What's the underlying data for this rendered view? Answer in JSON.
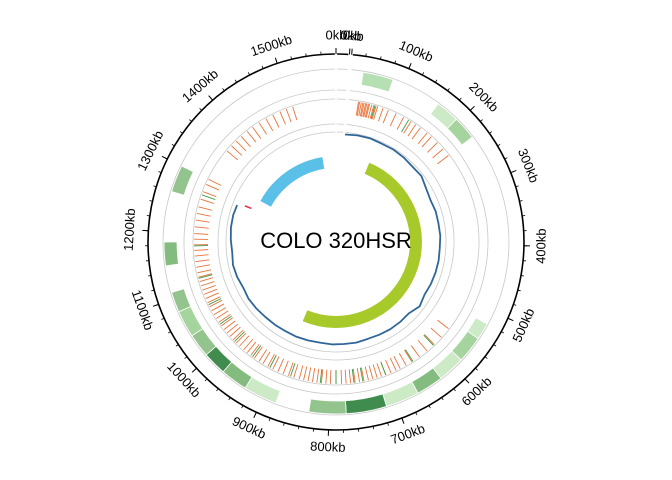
{
  "chart_data": {
    "type": "circos",
    "title": "COLO 320HSR",
    "genome_length_kb": 1580,
    "segments": [
      {
        "start_kb": 0,
        "end_kb": 18
      },
      {
        "start_kb": 21,
        "end_kb": 1580
      }
    ],
    "tick_labels": [
      "0kb",
      "0kb",
      "0kb",
      "100kb",
      "200kb",
      "300kb",
      "400kb",
      "500kb",
      "600kb",
      "700kb",
      "800kb",
      "900kb",
      "1000kb",
      "1100kb",
      "1200kb",
      "1300kb",
      "1400kb",
      "1500kb"
    ],
    "tick_positions_kb": [
      0,
      18,
      21,
      100,
      200,
      300,
      400,
      500,
      600,
      700,
      800,
      900,
      1000,
      1100,
      1200,
      1300,
      1400,
      1500
    ],
    "gene_blocks": [
      {
        "start_kb": 40,
        "end_kb": 85,
        "color": "#b7dfb4"
      },
      {
        "start_kb": 160,
        "end_kb": 195,
        "color": "#cdeac6"
      },
      {
        "start_kb": 195,
        "end_kb": 230,
        "color": "#a6d49e"
      },
      {
        "start_kb": 520,
        "end_kb": 545,
        "color": "#cdeac6"
      },
      {
        "start_kb": 545,
        "end_kb": 585,
        "color": "#a6d49e"
      },
      {
        "start_kb": 585,
        "end_kb": 625,
        "color": "#cdeac6"
      },
      {
        "start_kb": 625,
        "end_kb": 665,
        "color": "#84bb7e"
      },
      {
        "start_kb": 665,
        "end_kb": 715,
        "color": "#cdeac6"
      },
      {
        "start_kb": 715,
        "end_kb": 775,
        "color": "#3f8c4e"
      },
      {
        "start_kb": 775,
        "end_kb": 830,
        "color": "#94c48d"
      },
      {
        "start_kb": 880,
        "end_kb": 930,
        "color": "#cdeac6"
      },
      {
        "start_kb": 930,
        "end_kb": 970,
        "color": "#84bb7e"
      },
      {
        "start_kb": 970,
        "end_kb": 1005,
        "color": "#3f8c4e"
      },
      {
        "start_kb": 1005,
        "end_kb": 1040,
        "color": "#94c48d"
      },
      {
        "start_kb": 1040,
        "end_kb": 1080,
        "color": "#a6d49e"
      },
      {
        "start_kb": 1080,
        "end_kb": 1110,
        "color": "#94c48d"
      },
      {
        "start_kb": 1150,
        "end_kb": 1185,
        "color": "#84bb7e"
      },
      {
        "start_kb": 1260,
        "end_kb": 1300,
        "color": "#94c48d"
      }
    ],
    "variant_ticks_red": [
      40,
      42,
      45,
      48,
      50,
      53,
      55,
      58,
      60,
      64,
      68,
      72,
      75,
      85,
      95,
      110,
      125,
      140,
      150,
      160,
      175,
      185,
      200,
      215,
      230,
      560,
      580,
      598,
      615,
      632,
      648,
      660,
      672,
      680,
      690,
      700,
      708,
      716,
      724,
      732,
      740,
      748,
      756,
      764,
      772,
      780,
      790,
      800,
      808,
      816,
      824,
      832,
      840,
      848,
      856,
      866,
      876,
      886,
      896,
      906,
      916,
      926,
      934,
      944,
      952,
      960,
      968,
      978,
      986,
      994,
      1002,
      1010,
      1018,
      1026,
      1034,
      1042,
      1050,
      1058,
      1066,
      1074,
      1082,
      1090,
      1098,
      1106,
      1114,
      1122,
      1130,
      1140,
      1150,
      1160,
      1170,
      1180,
      1190,
      1200,
      1212,
      1224,
      1236,
      1248,
      1262,
      1276,
      1290,
      1300,
      1360,
      1372,
      1384,
      1396,
      1410,
      1422,
      1436,
      1450,
      1464,
      1478,
      1490,
      1502
    ],
    "variant_ticks_green": [
      70,
      135,
      600,
      646,
      700,
      742,
      758,
      790,
      818,
      872,
      912,
      948,
      990,
      1030,
      1070,
      1120,
      1178,
      1270
    ],
    "coverage_line": {
      "color": "#2f6699",
      "x_kb": [
        21,
        50,
        80,
        110,
        140,
        170,
        200,
        230,
        260,
        290,
        320,
        350,
        380,
        410,
        440,
        470,
        500,
        530,
        560,
        590,
        620,
        650,
        680,
        710,
        740,
        770,
        800,
        830,
        860,
        890,
        920,
        950,
        980,
        1010,
        1040,
        1070,
        1100,
        1130,
        1160,
        1190,
        1220,
        1250,
        1275
      ],
      "level": [
        0.55,
        0.6,
        0.62,
        0.58,
        0.6,
        0.57,
        0.52,
        0.55,
        0.38,
        0.3,
        0.35,
        0.34,
        0.36,
        0.33,
        0.35,
        0.34,
        0.32,
        0.28,
        0.42,
        0.22,
        0.25,
        0.26,
        0.24,
        0.22,
        0.26,
        0.24,
        0.25,
        0.22,
        0.24,
        0.26,
        0.25,
        0.27,
        0.28,
        0.32,
        0.35,
        0.3,
        0.38,
        0.42,
        0.35,
        0.4,
        0.45,
        0.46,
        0.42
      ]
    },
    "red_mark_kb": 1280,
    "inner_arcs": [
      {
        "start_kb": 1310,
        "end_kb": 1540,
        "color": "#5bc0e8"
      },
      {
        "start_kb": 100,
        "end_kb": 890,
        "color": "#a8c92a"
      }
    ]
  }
}
